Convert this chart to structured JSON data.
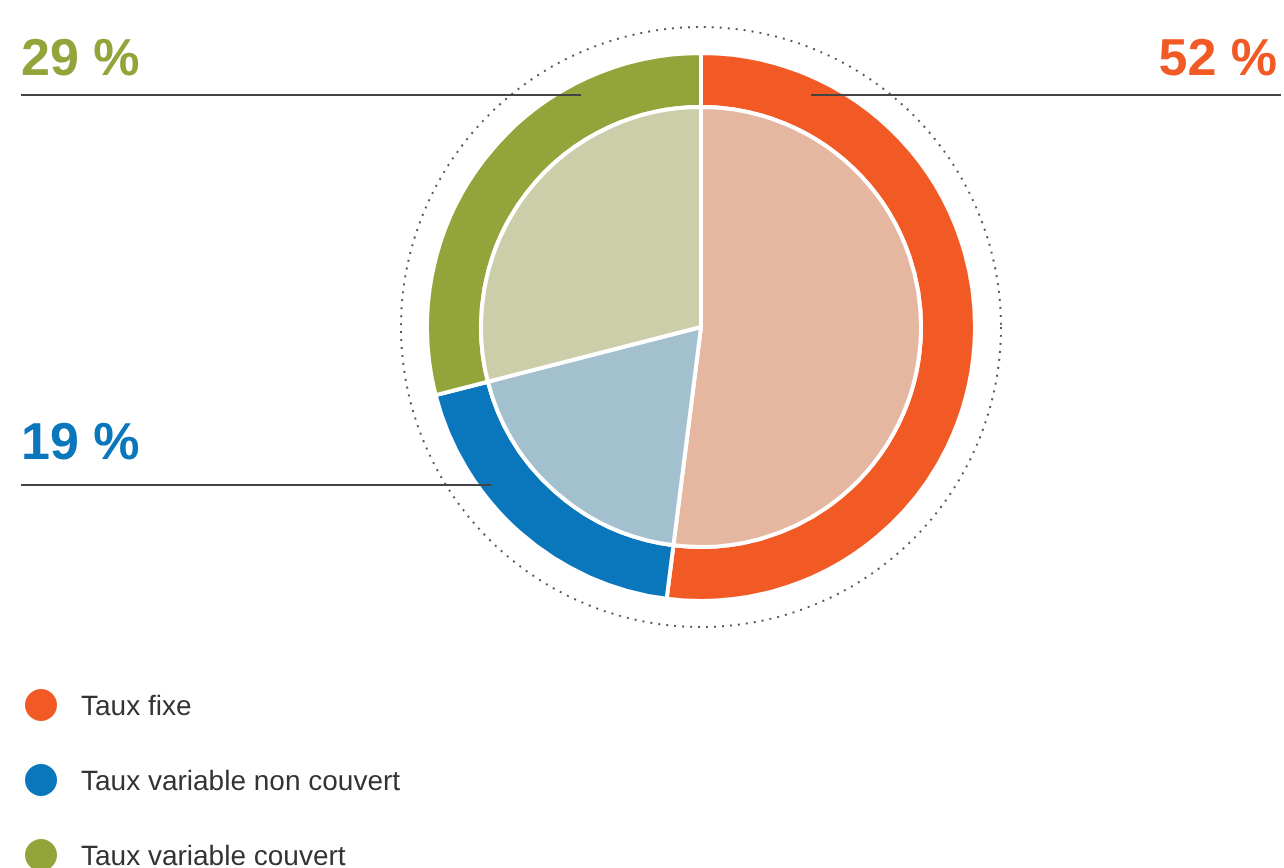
{
  "chart_data": {
    "type": "donut",
    "categories": [
      "Taux fixe",
      "Taux variable non couvert",
      "Taux variable couvert"
    ],
    "series": [
      {
        "values": [
          52,
          19,
          29
        ],
        "colors": [
          "#f15a24",
          "#0a77bd",
          "#92a43a"
        ],
        "value_labels": [
          "52 %",
          "19 %",
          "29 %"
        ]
      },
      {
        "values": [
          52,
          19,
          29
        ],
        "colors": [
          "#e5b7a0",
          "#a3c0ce",
          "#cccda9"
        ]
      }
    ],
    "legend": "bottom left"
  }
}
